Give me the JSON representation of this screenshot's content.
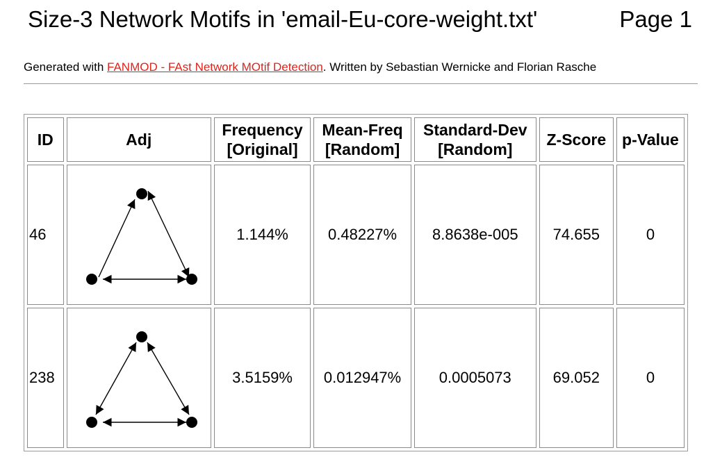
{
  "header": {
    "title": "Size-3 Network Motifs in 'email-Eu-core-weight.txt'",
    "page_label": "Page 1"
  },
  "subtitle": {
    "prefix": "Generated with ",
    "link_text": "FANMOD - FAst Network MOtif Detection",
    "suffix": ". Written by Sebastian Wernicke and Florian Rasche",
    "link_color": "#e0231b"
  },
  "table": {
    "columns": [
      {
        "line1": "ID",
        "line2": ""
      },
      {
        "line1": "Adj",
        "line2": ""
      },
      {
        "line1": "Frequency",
        "line2": "[Original]"
      },
      {
        "line1": "Mean-Freq",
        "line2": "[Random]"
      },
      {
        "line1": "Standard-Dev",
        "line2": "[Random]"
      },
      {
        "line1": "Z-Score",
        "line2": ""
      },
      {
        "line1": "p-Value",
        "line2": ""
      }
    ],
    "rows": [
      {
        "id": "46",
        "motif_icon": "triangle-motif-46-icon",
        "frequency": "1.144%",
        "mean_freq": "0.48227%",
        "std_dev": "8.8638e-005",
        "z_score": "74.655",
        "p_value": "0"
      },
      {
        "id": "238",
        "motif_icon": "triangle-motif-238-icon",
        "frequency": "3.5159%",
        "mean_freq": "0.012947%",
        "std_dev": "0.0005073",
        "z_score": "69.052",
        "p_value": "0"
      }
    ]
  }
}
